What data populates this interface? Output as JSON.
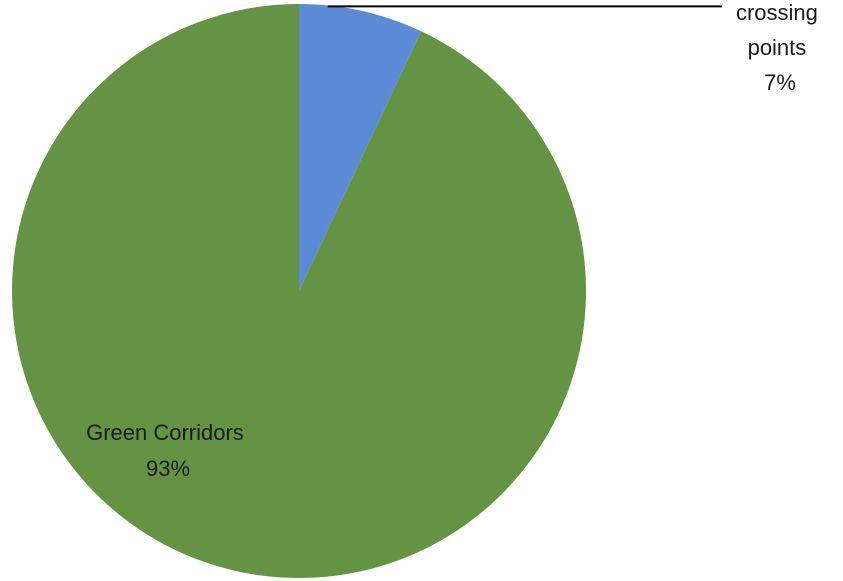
{
  "chart_data": {
    "type": "pie",
    "title": "",
    "start_angle_deg": 0,
    "direction": "clockwise",
    "slices": [
      {
        "label_lines": [
          "crossing",
          "points"
        ],
        "value": 7,
        "percent_label": "7%",
        "color": "#5b8bd6"
      },
      {
        "label_lines": [
          "Green Corridors"
        ],
        "value": 93,
        "percent_label": "93%",
        "color": "#649443"
      }
    ],
    "legend": "none"
  }
}
